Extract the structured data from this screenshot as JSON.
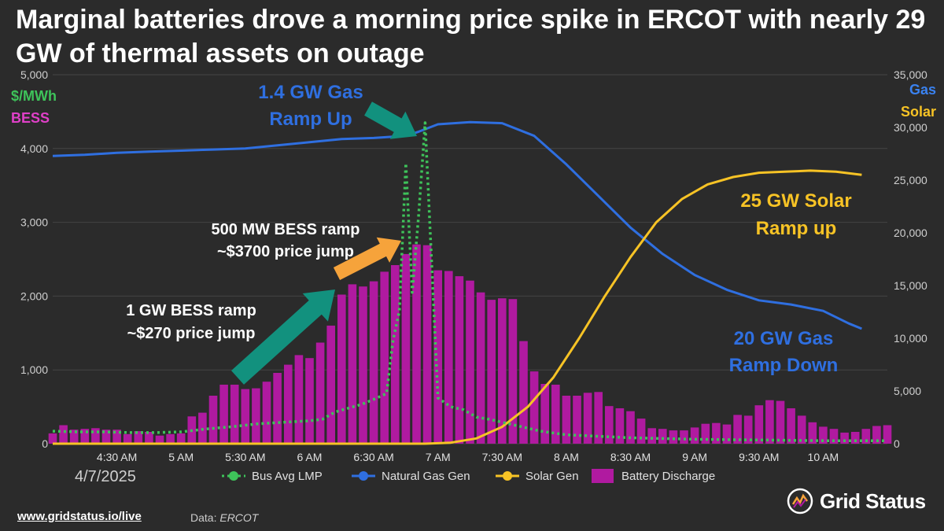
{
  "title": "Marginal batteries drove a morning price spike in ERCOT with nearly 29 GW of thermal assets on outage",
  "footer": {
    "link": "www.gridstatus.io/live",
    "source_label": "Data:",
    "source_value": "ERCOT"
  },
  "logo": {
    "text": "Grid Status"
  },
  "colors": {
    "background": "#2b2b2b",
    "lmp": "#3ec35a",
    "gas": "#2f6fe0",
    "solar": "#f7c325",
    "battery": "#b01aa0",
    "annotation_blue": "#2f6fe0",
    "annotation_yellow": "#f7c325",
    "arrow_teal": "#12917e",
    "arrow_orange": "#f6a33b"
  },
  "chart_data": {
    "type": "combo",
    "date_label": "4/7/2025",
    "x_tick_labels": [
      "4:30 AM",
      "5 AM",
      "5:30 AM",
      "6 AM",
      "6:30 AM",
      "7 AM",
      "7:30 AM",
      "8 AM",
      "8:30 AM",
      "9 AM",
      "9:30 AM",
      "10 AM"
    ],
    "x_tick_hours": [
      4.5,
      5,
      5.5,
      6,
      6.5,
      7,
      7.5,
      8,
      8.5,
      9,
      9.5,
      10
    ],
    "x_range_hours": [
      4.0,
      10.5
    ],
    "y_left": {
      "labels": [
        "$/MWh",
        "BESS"
      ],
      "range": [
        0,
        5000
      ],
      "ticks": [
        0,
        1000,
        2000,
        3000,
        4000,
        5000
      ],
      "tick_labels": [
        "0",
        "1,000",
        "2,000",
        "3,000",
        "4,000",
        "5,000"
      ]
    },
    "y_right": {
      "labels": [
        "Gas",
        "Solar"
      ],
      "range": [
        0,
        35000
      ],
      "ticks": [
        0,
        5000,
        10000,
        15000,
        20000,
        25000,
        30000,
        35000
      ],
      "tick_labels": [
        "0",
        "5,000",
        "10,000",
        "15,000",
        "20,000",
        "25,000",
        "30,000",
        "35,000"
      ]
    },
    "legend": [
      "Bus Avg LMP",
      "Natural Gas Gen",
      "Solar Gen",
      "Battery Discharge"
    ],
    "series": [
      {
        "name": "Battery Discharge",
        "type": "bar",
        "axis": "left",
        "start_hour": 4.0,
        "step_hours": 0.0833333,
        "values": [
          140,
          250,
          190,
          200,
          210,
          190,
          190,
          130,
          170,
          160,
          110,
          130,
          140,
          370,
          420,
          650,
          800,
          800,
          740,
          750,
          840,
          960,
          1070,
          1200,
          1160,
          1370,
          1600,
          2020,
          2160,
          2130,
          2200,
          2330,
          2420,
          2570,
          2700,
          2690,
          2350,
          2340,
          2270,
          2210,
          2050,
          1950,
          1970,
          1960,
          1390,
          980,
          810,
          800,
          650,
          650,
          690,
          700,
          510,
          480,
          440,
          340,
          210,
          200,
          180,
          180,
          220,
          270,
          280,
          260,
          390,
          380,
          520,
          590,
          580,
          480,
          380,
          290,
          230,
          200,
          150,
          160,
          200,
          240,
          250
        ]
      },
      {
        "name": "Bus Avg LMP",
        "type": "line",
        "axis": "left",
        "dashed": true,
        "x": [
          4.0,
          4.2,
          4.4,
          4.6,
          4.8,
          5.0,
          5.2,
          5.4,
          5.6,
          5.8,
          6.0,
          6.1,
          6.2,
          6.3,
          6.4,
          6.5,
          6.6,
          6.65,
          6.7,
          6.75,
          6.8,
          6.85,
          6.9,
          7.0,
          7.1,
          7.2,
          7.3,
          7.4,
          7.6,
          7.8,
          8.0,
          8.5,
          9.0,
          9.5,
          10.0,
          10.5
        ],
        "y": [
          170,
          160,
          160,
          150,
          150,
          160,
          200,
          230,
          270,
          290,
          310,
          330,
          430,
          480,
          530,
          600,
          680,
          1400,
          1800,
          3800,
          2050,
          3100,
          4350,
          620,
          500,
          460,
          360,
          330,
          250,
          170,
          120,
          80,
          60,
          50,
          40,
          40
        ]
      },
      {
        "name": "Natural Gas Gen",
        "type": "line",
        "axis": "right",
        "x": [
          4.0,
          4.25,
          4.5,
          4.75,
          5.0,
          5.25,
          5.5,
          5.75,
          6.0,
          6.25,
          6.5,
          6.75,
          6.85,
          7.0,
          7.25,
          7.5,
          7.75,
          8.0,
          8.25,
          8.5,
          8.75,
          9.0,
          9.25,
          9.5,
          9.75,
          10.0,
          10.2,
          10.3
        ],
        "y": [
          27300,
          27400,
          27600,
          27700,
          27800,
          27900,
          28000,
          28300,
          28600,
          28900,
          29000,
          29200,
          29600,
          30300,
          30500,
          30400,
          29200,
          26500,
          23500,
          20500,
          18000,
          16000,
          14600,
          13600,
          13200,
          12600,
          11400,
          10900
        ]
      },
      {
        "name": "Solar Gen",
        "type": "line",
        "axis": "right",
        "x": [
          4.0,
          6.9,
          7.1,
          7.3,
          7.5,
          7.7,
          7.9,
          8.1,
          8.3,
          8.5,
          8.7,
          8.9,
          9.1,
          9.3,
          9.5,
          9.7,
          9.9,
          10.1,
          10.3
        ],
        "y": [
          0,
          0,
          100,
          500,
          1600,
          3500,
          6300,
          10000,
          14000,
          17700,
          21000,
          23200,
          24600,
          25300,
          25700,
          25800,
          25900,
          25800,
          25500
        ]
      }
    ]
  },
  "annotations": [
    {
      "id": "gas-up-line1",
      "text": "1.4 GW Gas",
      "color": "blue"
    },
    {
      "id": "gas-up-line2",
      "text": "Ramp Up",
      "color": "blue"
    },
    {
      "id": "bess500-line1",
      "text": "500 MW BESS ramp",
      "color": "white"
    },
    {
      "id": "bess500-line2",
      "text": "~$3700 price jump",
      "color": "white"
    },
    {
      "id": "bess1gw-line1",
      "text": "1 GW BESS ramp",
      "color": "white"
    },
    {
      "id": "bess1gw-line2",
      "text": "~$270 price jump",
      "color": "white"
    },
    {
      "id": "solar-line1",
      "text": "25 GW Solar",
      "color": "yellow"
    },
    {
      "id": "solar-line2",
      "text": "Ramp up",
      "color": "yellow"
    },
    {
      "id": "gas-down-line1",
      "text": "20 GW Gas",
      "color": "blue"
    },
    {
      "id": "gas-down-line2",
      "text": "Ramp Down",
      "color": "blue"
    }
  ]
}
